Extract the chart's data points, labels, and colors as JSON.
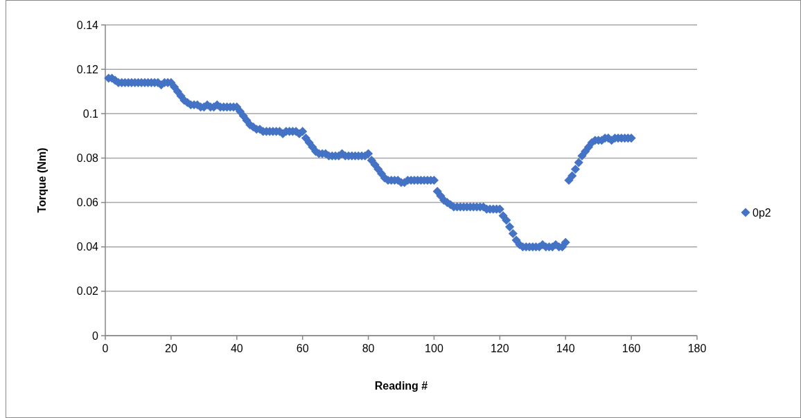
{
  "chart_data": {
    "type": "scatter",
    "xlabel": "Reading #",
    "ylabel": "Torque (Nm)",
    "xlim": [
      0,
      180
    ],
    "xticks": [
      0,
      20,
      40,
      60,
      80,
      100,
      120,
      140,
      160,
      180
    ],
    "ylim": [
      0,
      0.14
    ],
    "yticks": [
      0,
      0.02,
      0.04,
      0.06,
      0.08,
      0.1,
      0.12,
      0.14
    ],
    "grid": "y",
    "legend": "right",
    "marker": "diamond",
    "x": [
      1,
      2,
      3,
      4,
      5,
      6,
      7,
      8,
      9,
      10,
      11,
      12,
      13,
      14,
      15,
      16,
      17,
      18,
      19,
      20,
      21,
      22,
      23,
      24,
      25,
      26,
      27,
      28,
      29,
      30,
      31,
      32,
      33,
      34,
      35,
      36,
      37,
      38,
      39,
      40,
      41,
      42,
      43,
      44,
      45,
      46,
      47,
      48,
      49,
      50,
      51,
      52,
      53,
      54,
      55,
      56,
      57,
      58,
      59,
      60,
      61,
      62,
      63,
      64,
      65,
      66,
      67,
      68,
      69,
      70,
      71,
      72,
      73,
      74,
      75,
      76,
      77,
      78,
      79,
      80,
      81,
      82,
      83,
      84,
      85,
      86,
      87,
      88,
      89,
      90,
      91,
      92,
      93,
      94,
      95,
      96,
      97,
      98,
      99,
      100,
      101,
      102,
      103,
      104,
      105,
      106,
      107,
      108,
      109,
      110,
      111,
      112,
      113,
      114,
      115,
      116,
      117,
      118,
      119,
      120,
      121,
      122,
      123,
      124,
      125,
      126,
      127,
      128,
      129,
      130,
      131,
      132,
      133,
      134,
      135,
      136,
      137,
      138,
      139,
      140,
      141,
      142,
      143,
      144,
      145,
      146,
      147,
      148,
      149,
      150,
      151,
      152,
      153,
      154,
      155,
      156,
      157,
      158,
      159,
      160
    ],
    "series": [
      {
        "name": "0p2",
        "color": "#4472c4",
        "values": [
          0.116,
          0.116,
          0.115,
          0.114,
          0.114,
          0.114,
          0.114,
          0.114,
          0.114,
          0.114,
          0.114,
          0.114,
          0.114,
          0.114,
          0.114,
          0.114,
          0.113,
          0.114,
          0.114,
          0.114,
          0.112,
          0.11,
          0.108,
          0.106,
          0.105,
          0.104,
          0.104,
          0.104,
          0.103,
          0.103,
          0.104,
          0.103,
          0.103,
          0.104,
          0.103,
          0.103,
          0.103,
          0.103,
          0.103,
          0.103,
          0.101,
          0.099,
          0.097,
          0.095,
          0.094,
          0.093,
          0.093,
          0.092,
          0.092,
          0.092,
          0.092,
          0.092,
          0.092,
          0.091,
          0.092,
          0.092,
          0.092,
          0.092,
          0.091,
          0.092,
          0.089,
          0.087,
          0.085,
          0.083,
          0.082,
          0.082,
          0.082,
          0.081,
          0.081,
          0.081,
          0.081,
          0.082,
          0.081,
          0.081,
          0.081,
          0.081,
          0.081,
          0.081,
          0.081,
          0.082,
          0.079,
          0.077,
          0.075,
          0.073,
          0.071,
          0.07,
          0.07,
          0.07,
          0.07,
          0.069,
          0.069,
          0.07,
          0.07,
          0.07,
          0.07,
          0.07,
          0.07,
          0.07,
          0.07,
          0.07,
          0.065,
          0.063,
          0.061,
          0.06,
          0.059,
          0.058,
          0.058,
          0.058,
          0.058,
          0.058,
          0.058,
          0.058,
          0.058,
          0.058,
          0.058,
          0.057,
          0.057,
          0.057,
          0.057,
          0.057,
          0.054,
          0.052,
          0.049,
          0.046,
          0.043,
          0.041,
          0.04,
          0.04,
          0.04,
          0.04,
          0.04,
          0.04,
          0.041,
          0.04,
          0.04,
          0.04,
          0.041,
          0.04,
          0.04,
          0.042,
          0.07,
          0.072,
          0.075,
          0.078,
          0.081,
          0.083,
          0.085,
          0.087,
          0.088,
          0.088,
          0.088,
          0.089,
          0.089,
          0.088,
          0.089,
          0.089,
          0.089,
          0.089,
          0.089,
          0.089
        ]
      }
    ]
  }
}
